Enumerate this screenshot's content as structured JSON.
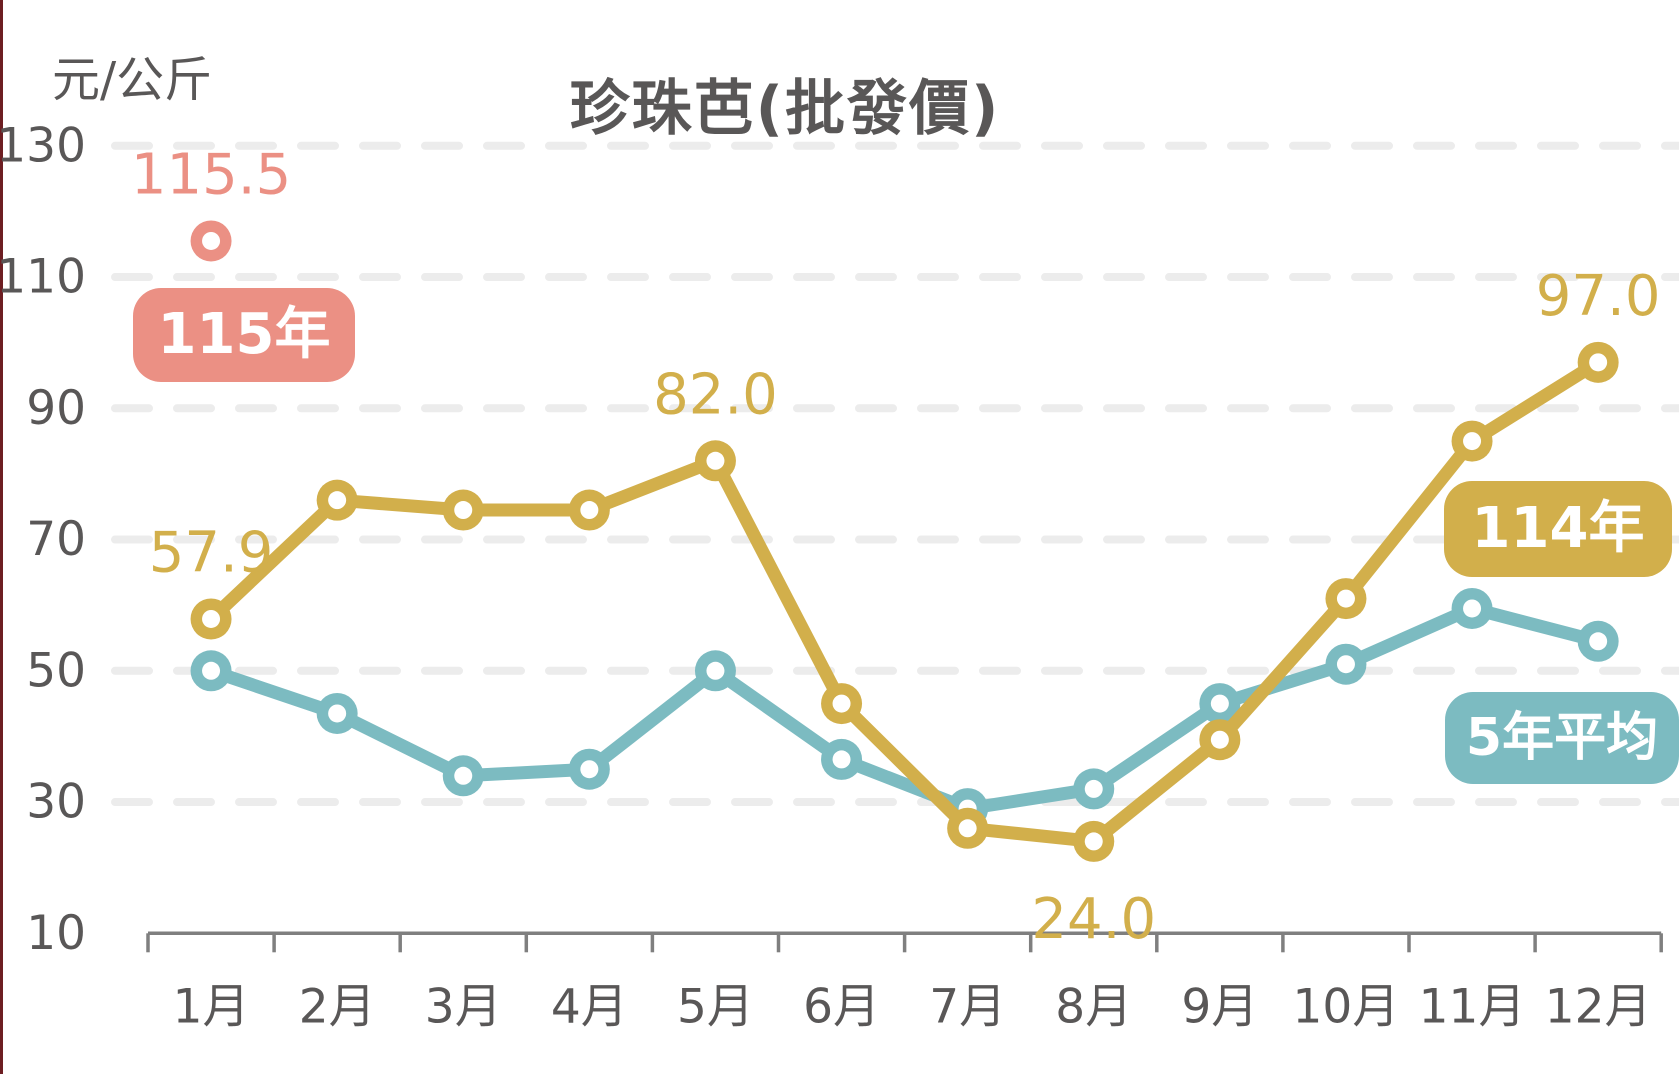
{
  "title": "珍珠芭(批發價)",
  "y_axis": {
    "unit": "元/公斤",
    "ticks": [
      130,
      110,
      90,
      70,
      50,
      30,
      10
    ],
    "min": 10,
    "max": 130
  },
  "x_axis": {
    "labels": [
      "1月",
      "2月",
      "3月",
      "4月",
      "5月",
      "6月",
      "7月",
      "8月",
      "9月",
      "10月",
      "11月",
      "12月"
    ]
  },
  "colors": {
    "year115": "#EB9084",
    "year114": "#D2AF4B",
    "avg5yr": "#7CBBC1",
    "text": "#595757",
    "grid": "#ECECEC",
    "axis": "#7f7f7f",
    "left_edge": "#6d1e22"
  },
  "chart_data": {
    "type": "line",
    "categories": [
      "1月",
      "2月",
      "3月",
      "4月",
      "5月",
      "6月",
      "7月",
      "8月",
      "9月",
      "10月",
      "11月",
      "12月"
    ],
    "ylim": [
      10,
      130
    ],
    "grid": "horizontal-dashed",
    "series": [
      {
        "name": "5年平均",
        "color": "#7CBBC1",
        "values": [
          50,
          43.5,
          34,
          35,
          50,
          36.5,
          29,
          32,
          45,
          51,
          59.5,
          54.5
        ],
        "point_labels": []
      },
      {
        "name": "114年",
        "color": "#D2AF4B",
        "values": [
          57.9,
          76,
          74.5,
          74.5,
          82,
          45,
          26,
          24,
          39.5,
          61,
          85,
          97
        ],
        "point_labels": [
          {
            "index": 0,
            "text": "57.9",
            "position": "above"
          },
          {
            "index": 4,
            "text": "82.0",
            "position": "above"
          },
          {
            "index": 7,
            "text": "24.0",
            "position": "below"
          },
          {
            "index": 11,
            "text": "97.0",
            "position": "above"
          }
        ]
      },
      {
        "name": "115年",
        "color": "#EB9084",
        "values": [
          115.5,
          null,
          null,
          null,
          null,
          null,
          null,
          null,
          null,
          null,
          null,
          null
        ],
        "point_labels": [
          {
            "index": 0,
            "text": "115.5",
            "position": "above"
          }
        ]
      }
    ]
  }
}
